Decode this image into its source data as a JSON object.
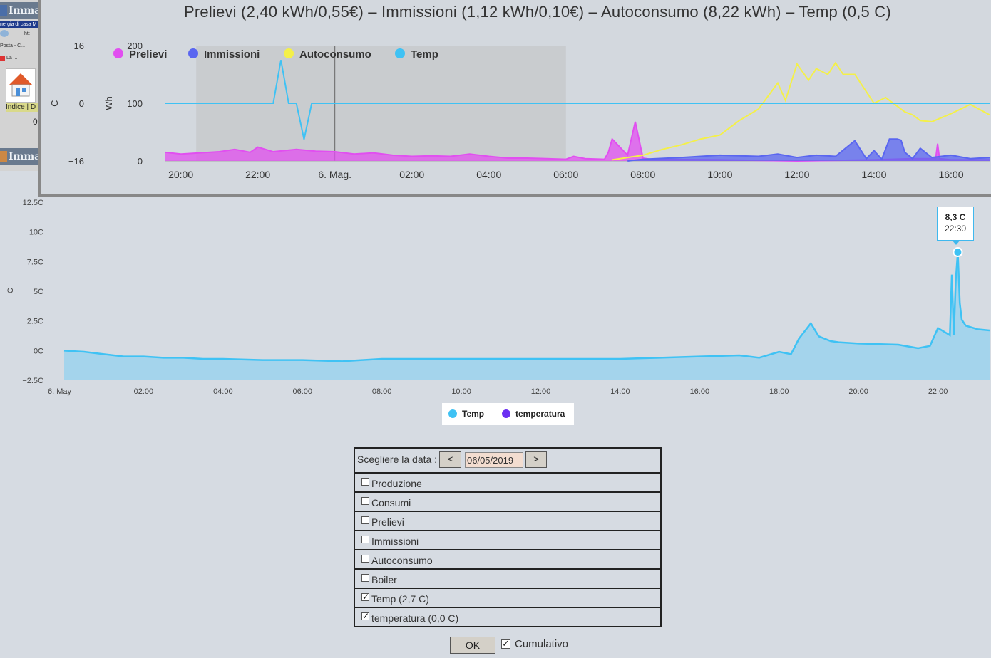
{
  "left_window": {
    "title_top": "Immag",
    "title_bottom": "Imma",
    "blue_bar": "nergia di casa M",
    "row1": "htt",
    "row2": "Posta - C...",
    "row3": "La ...",
    "indice": "Indice | D",
    "zero": "0",
    "home_icon": "house-icon"
  },
  "top_chart": {
    "title": "Prelievi (2,40 kWh/0,55€) – Immissioni (1,12 kWh/0,10€) – Autoconsumo (8,22 kWh) – Temp (0,5 C)",
    "left_axis_label": "C",
    "right_axis_label": "Wh",
    "legend": [
      {
        "name": "Prelievi",
        "color": "#e14ff0"
      },
      {
        "name": "Immissioni",
        "color": "#5a66f0"
      },
      {
        "name": "Autoconsumo",
        "color": "#f4f048"
      },
      {
        "name": "Temp",
        "color": "#3fc2f4"
      }
    ]
  },
  "bottom_chart": {
    "axis_label": "C",
    "legend": [
      {
        "name": "Temp",
        "color": "#3fc2f4"
      },
      {
        "name": "temperatura",
        "color": "#6b30f2"
      }
    ],
    "tooltip_value": "8,3 C",
    "tooltip_time": "22:30"
  },
  "form": {
    "date_label": "Scegliere la data :",
    "prev_label": "<",
    "next_label": ">",
    "date_value": "06/05/2019",
    "options": [
      {
        "label": "Produzione",
        "checked": false
      },
      {
        "label": "Consumi",
        "checked": false
      },
      {
        "label": "Prelievi",
        "checked": false
      },
      {
        "label": "Immissioni",
        "checked": false
      },
      {
        "label": "Autoconsumo",
        "checked": false
      },
      {
        "label": "Boiler",
        "checked": false
      },
      {
        "label": "Temp (2,7 C)",
        "checked": true
      },
      {
        "label": "temperatura (0,0 C)",
        "checked": true
      }
    ],
    "ok_label": "OK",
    "cumulativo_label": "Cumulativo",
    "cumulativo_checked": true
  },
  "chart_data": [
    {
      "type": "area",
      "title": "Prelievi (2,40 kWh/0,55€) – Immissioni (1,12 kWh/0,10€) – Autoconsumo (8,22 kWh) – Temp (0,5 C)",
      "x_unit": "hour",
      "x_ticks": [
        "20:00",
        "22:00",
        "6. Mag.",
        "02:00",
        "04:00",
        "06:00",
        "08:00",
        "10:00",
        "12:00",
        "14:00",
        "16:00"
      ],
      "xlim_hours": [
        19.6,
        41.0
      ],
      "y_left": {
        "label": "C",
        "ticks": [
          "16",
          "0",
          "−16"
        ],
        "lim": [
          -16,
          16
        ]
      },
      "y_right": {
        "label": "Wh",
        "ticks": [
          "200",
          "100",
          "0"
        ],
        "lim": [
          0,
          200
        ]
      },
      "highlight_band_hours": [
        20.4,
        30.0
      ],
      "series": [
        {
          "name": "Prelievi",
          "axis": "right",
          "color": "#e14ff0",
          "x": [
            19.6,
            20,
            20.5,
            21,
            21.4,
            21.8,
            22,
            22.4,
            23,
            23.5,
            24,
            24.5,
            25,
            25.5,
            26,
            26.5,
            27,
            27.5,
            28,
            28.5,
            29,
            29.5,
            30,
            30.2,
            30.5,
            31,
            31.1,
            31.2,
            31.6,
            31.8,
            32,
            32.2,
            34,
            36,
            38,
            39,
            39.6,
            39.65,
            39.7,
            40,
            41
          ],
          "y": [
            15,
            12,
            14,
            16,
            20,
            15,
            24,
            16,
            20,
            17,
            16,
            12,
            14,
            10,
            8,
            9,
            8,
            12,
            8,
            5,
            5,
            4,
            3,
            8,
            4,
            3,
            15,
            38,
            10,
            68,
            5,
            3,
            2,
            0,
            2,
            4,
            4,
            30,
            4,
            2,
            2
          ]
        },
        {
          "name": "Immissioni",
          "axis": "right",
          "color": "#5a66f0",
          "x": [
            31.6,
            32,
            33,
            34,
            35,
            35.5,
            36,
            36.5,
            37,
            37.5,
            37.8,
            38,
            38.2,
            38.4,
            38.6,
            38.7,
            38.8,
            39,
            39.2,
            39.5,
            40,
            40.5,
            41
          ],
          "y": [
            0,
            3,
            6,
            10,
            8,
            12,
            6,
            10,
            8,
            35,
            4,
            18,
            3,
            38,
            38,
            36,
            15,
            4,
            22,
            6,
            10,
            4,
            6
          ]
        },
        {
          "name": "Autoconsumo",
          "axis": "right",
          "color": "#f4f048",
          "x": [
            31.2,
            31.5,
            32,
            32.5,
            33,
            33.5,
            34,
            34.5,
            35,
            35.5,
            35.7,
            36,
            36.3,
            36.5,
            36.8,
            37,
            37.2,
            37.5,
            37.8,
            38,
            38.3,
            38.6,
            38.8,
            39,
            39.2,
            39.5,
            40,
            40.5,
            41
          ],
          "y": [
            2,
            5,
            10,
            20,
            28,
            38,
            45,
            70,
            90,
            135,
            105,
            168,
            140,
            160,
            150,
            170,
            150,
            150,
            120,
            100,
            110,
            95,
            85,
            80,
            70,
            68,
            82,
            98,
            80
          ]
        },
        {
          "name": "Temp",
          "axis": "left",
          "color": "#3fc2f4",
          "x": [
            19.6,
            22,
            22.4,
            22.6,
            22.8,
            23,
            23.2,
            23.4,
            23.6,
            24,
            26,
            28,
            30,
            32,
            34,
            36,
            38,
            40,
            41
          ],
          "y": [
            0,
            0,
            0,
            12,
            0,
            0,
            -10,
            0,
            0,
            0,
            0,
            0,
            0,
            0,
            0,
            0,
            0,
            0,
            0
          ]
        }
      ]
    },
    {
      "type": "area",
      "x_unit": "hour",
      "x_ticks": [
        "6. May",
        "02:00",
        "04:00",
        "06:00",
        "08:00",
        "10:00",
        "12:00",
        "14:00",
        "16:00",
        "18:00",
        "20:00",
        "22:00"
      ],
      "xlim_hours": [
        0,
        23.3
      ],
      "ylabel": "C",
      "y_ticks": [
        "12.5C",
        "10C",
        "7.5C",
        "5C",
        "2.5C",
        "0C",
        "−2.5C"
      ],
      "ylim": [
        -2.5,
        12.5
      ],
      "series": [
        {
          "name": "Temp",
          "color": "#3fc2f4",
          "x": [
            0,
            0.5,
            1,
            1.5,
            2,
            2.5,
            3,
            3.5,
            4,
            5,
            6,
            7,
            7.5,
            8,
            9,
            10,
            11,
            12,
            13,
            14,
            15,
            16,
            17,
            17.5,
            18,
            18.3,
            18.5,
            18.8,
            19,
            19.3,
            19.5,
            20,
            21,
            21.5,
            21.8,
            22,
            22.2,
            22.3,
            22.35,
            22.4,
            22.45,
            22.5,
            22.55,
            22.6,
            22.7,
            23,
            23.3
          ],
          "y": [
            0,
            -0.1,
            -0.3,
            -0.5,
            -0.5,
            -0.6,
            -0.6,
            -0.7,
            -0.7,
            -0.8,
            -0.8,
            -0.9,
            -0.8,
            -0.7,
            -0.7,
            -0.7,
            -0.7,
            -0.7,
            -0.7,
            -0.7,
            -0.6,
            -0.5,
            -0.4,
            -0.6,
            -0.1,
            -0.3,
            1.0,
            2.3,
            1.2,
            0.8,
            0.7,
            0.6,
            0.5,
            0.2,
            0.4,
            1.9,
            1.5,
            1.3,
            6.4,
            1.3,
            6.0,
            8.3,
            4.0,
            2.6,
            2.1,
            1.8,
            1.7
          ]
        },
        {
          "name": "temperatura",
          "color": "#6b30f2",
          "x": [],
          "y": []
        }
      ],
      "tooltip": {
        "series": "Temp",
        "x": "22:30",
        "value": "8,3 C"
      }
    }
  ]
}
